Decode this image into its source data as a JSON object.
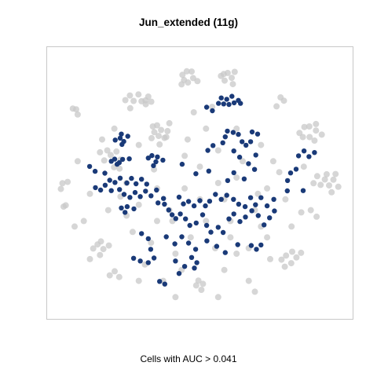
{
  "chart_data": {
    "type": "scatter",
    "title": "Jun_extended (11g)",
    "xlabel": "Cells with AUC > 0.041",
    "ylabel": "",
    "xlim": [
      0,
      100
    ],
    "ylim": [
      0,
      100
    ],
    "grid": false,
    "legend": "none",
    "colors": {
      "background_cells": "#c8c8c8",
      "highlighted_cells": "#1a3a78",
      "frame": "#c8c8c8"
    },
    "series": [
      {
        "role": "background-cells",
        "points": [
          [
            45.7,
            91.1
          ],
          [
            47.3,
            91.0
          ],
          [
            44.3,
            89.8
          ],
          [
            47.8,
            88.6
          ],
          [
            44.0,
            86.3
          ],
          [
            46.1,
            87.0
          ],
          [
            44.8,
            87.9
          ],
          [
            49.2,
            87.5
          ],
          [
            59.1,
            90.5
          ],
          [
            56.9,
            89.4
          ],
          [
            58.1,
            87.7
          ],
          [
            60.4,
            88.7
          ],
          [
            61.4,
            90.9
          ],
          [
            57.8,
            90.1
          ],
          [
            60.8,
            86.4
          ],
          [
            27.1,
            82.2
          ],
          [
            28.3,
            80.2
          ],
          [
            30.9,
            80.1
          ],
          [
            29.9,
            82.6
          ],
          [
            25.6,
            80.5
          ],
          [
            27.2,
            77.5
          ],
          [
            32.2,
            80.4
          ],
          [
            33.1,
            81.8
          ],
          [
            34.1,
            79.9
          ],
          [
            32.3,
            79.0
          ],
          [
            76.4,
            81.5
          ],
          [
            77.5,
            80.3
          ],
          [
            75.1,
            78.2
          ],
          [
            9.5,
            77.1
          ],
          [
            10.0,
            75.2
          ],
          [
            8.4,
            77.4
          ],
          [
            34.2,
            66.5
          ],
          [
            36.5,
            67.3
          ],
          [
            38.4,
            66.6
          ],
          [
            39.4,
            69.1
          ],
          [
            37.3,
            69.5
          ],
          [
            36.0,
            71.2
          ],
          [
            34.6,
            70.8
          ],
          [
            39.0,
            66.9
          ],
          [
            36.8,
            64.2
          ],
          [
            35.1,
            68.7
          ],
          [
            82.6,
            68.4
          ],
          [
            84.2,
            70.6
          ],
          [
            85.9,
            66.9
          ],
          [
            88.0,
            69.3
          ],
          [
            89.9,
            67.8
          ],
          [
            87.5,
            65.6
          ],
          [
            85.8,
            70.8
          ],
          [
            88.0,
            71.7
          ],
          [
            83.7,
            66.9
          ],
          [
            20.8,
            60.3
          ],
          [
            22.7,
            61.6
          ],
          [
            24.0,
            58.6
          ],
          [
            18.7,
            58.3
          ],
          [
            21.9,
            55.8
          ],
          [
            17.3,
            61.3
          ],
          [
            23.7,
            55.3
          ],
          [
            19.7,
            62.0
          ],
          [
            88.4,
            52.5
          ],
          [
            90.9,
            51.3
          ],
          [
            93.7,
            51.2
          ],
          [
            95.3,
            48.6
          ],
          [
            92.3,
            49.1
          ],
          [
            89.5,
            49.3
          ],
          [
            87.2,
            49.9
          ],
          [
            91.5,
            53.2
          ],
          [
            94.4,
            53.3
          ],
          [
            93.1,
            46.6
          ],
          [
            5.0,
            49.9
          ],
          [
            6.7,
            50.4
          ],
          [
            4.5,
            47.8
          ],
          [
            5.4,
            41.3
          ],
          [
            6.1,
            41.8
          ],
          [
            83.2,
            39.2
          ],
          [
            86.3,
            40.0
          ],
          [
            88.2,
            37.6
          ],
          [
            16.5,
            27.4
          ],
          [
            18.4,
            25.7
          ],
          [
            17.3,
            23.5
          ],
          [
            20.2,
            27.0
          ],
          [
            17.6,
            28.5
          ],
          [
            15.1,
            25.9
          ],
          [
            78.2,
            23.3
          ],
          [
            80.2,
            24.7
          ],
          [
            81.6,
            22.6
          ],
          [
            79.9,
            20.5
          ],
          [
            76.7,
            21.8
          ],
          [
            77.8,
            19.2
          ],
          [
            83.1,
            24.3
          ],
          [
            20.5,
            16.0
          ],
          [
            22.1,
            17.5
          ],
          [
            23.6,
            15.4
          ],
          [
            48.8,
            12.3
          ],
          [
            51.0,
            12.9
          ],
          [
            50.5,
            10.7
          ],
          [
            49.5,
            14.1
          ],
          [
            24.0,
            45.0
          ],
          [
            26.0,
            50.0
          ],
          [
            30.0,
            42.0
          ],
          [
            35.0,
            55.0
          ],
          [
            40.0,
            40.0
          ],
          [
            45.0,
            48.0
          ],
          [
            52.0,
            36.0
          ],
          [
            58.0,
            44.0
          ],
          [
            62.0,
            52.0
          ],
          [
            68.0,
            40.0
          ],
          [
            72.0,
            48.0
          ],
          [
            28.0,
            32.0
          ],
          [
            34.0,
            28.0
          ],
          [
            42.0,
            24.0
          ],
          [
            55.0,
            26.0
          ],
          [
            60.0,
            30.0
          ],
          [
            66.0,
            26.0
          ],
          [
            72.0,
            30.0
          ],
          [
            45.0,
            60.0
          ],
          [
            50.0,
            56.0
          ],
          [
            56.0,
            62.0
          ],
          [
            40.0,
            72.0
          ],
          [
            48.0,
            76.0
          ],
          [
            62.0,
            70.0
          ],
          [
            70.0,
            64.0
          ],
          [
            74.0,
            58.0
          ],
          [
            30.0,
            64.0
          ],
          [
            14.0,
            46.0
          ],
          [
            12.0,
            36.0
          ],
          [
            32.0,
            20.0
          ],
          [
            44.0,
            18.0
          ],
          [
            58.0,
            18.0
          ],
          [
            66.0,
            14.0
          ],
          [
            38.0,
            14.0
          ],
          [
            78.0,
            44.0
          ],
          [
            80.0,
            34.0
          ],
          [
            76.0,
            54.0
          ],
          [
            52.0,
            70.0
          ],
          [
            36.0,
            48.0
          ],
          [
            64.0,
            58.0
          ],
          [
            41.0,
            36.0
          ],
          [
            47.0,
            30.0
          ],
          [
            56.0,
            50.0
          ],
          [
            69.0,
            46.0
          ],
          [
            26.0,
            38.0
          ],
          [
            20.0,
            40.0
          ],
          [
            18.0,
            66.0
          ],
          [
            22.0,
            70.0
          ],
          [
            54.0,
            78.0
          ],
          [
            46.0,
            66.0
          ],
          [
            60.0,
            36.0
          ],
          [
            73.0,
            22.0
          ],
          [
            84.0,
            56.0
          ],
          [
            10.0,
            58.0
          ],
          [
            9.0,
            34.0
          ],
          [
            14.0,
            22.0
          ],
          [
            30.0,
            14.0
          ],
          [
            42.0,
            8.0
          ],
          [
            56.0,
            8.0
          ],
          [
            68.0,
            10.0
          ],
          [
            36.0,
            36.0
          ],
          [
            50.0,
            44.0
          ],
          [
            62.0,
            24.0
          ],
          [
            70.0,
            34.0
          ]
        ]
      },
      {
        "role": "cells-with-auc-above-threshold",
        "points": [
          [
            56.1,
            79.3
          ],
          [
            57.8,
            79.1
          ],
          [
            59.5,
            78.9
          ],
          [
            57.0,
            81.3
          ],
          [
            58.8,
            80.8
          ],
          [
            61.2,
            79.5
          ],
          [
            60.5,
            81.9
          ],
          [
            62.6,
            80.4
          ],
          [
            63.3,
            79.3
          ],
          [
            52.2,
            77.9
          ],
          [
            54.1,
            76.6
          ],
          [
            59.0,
            69.1
          ],
          [
            60.9,
            68.6
          ],
          [
            62.6,
            67.9
          ],
          [
            58.3,
            67.0
          ],
          [
            57.5,
            64.8
          ],
          [
            63.8,
            65.2
          ],
          [
            65.1,
            63.9
          ],
          [
            66.6,
            65.2
          ],
          [
            68.9,
            68.0
          ],
          [
            67.1,
            68.8
          ],
          [
            54.3,
            63.8
          ],
          [
            52.6,
            62.0
          ],
          [
            61.1,
            61.8
          ],
          [
            63.0,
            59.5
          ],
          [
            65.9,
            57.1
          ],
          [
            68.3,
            60.3
          ],
          [
            23.9,
            66.5
          ],
          [
            25.1,
            65.3
          ],
          [
            26.4,
            67.2
          ],
          [
            24.5,
            64.2
          ],
          [
            22.3,
            65.8
          ],
          [
            24.3,
            68.0
          ],
          [
            21.0,
            58.0
          ],
          [
            22.1,
            58.8
          ],
          [
            23.6,
            57.5
          ],
          [
            24.7,
            58.7
          ],
          [
            22.9,
            56.9
          ],
          [
            26.9,
            58.9
          ],
          [
            33.1,
            59.2
          ],
          [
            34.3,
            60.1
          ],
          [
            35.6,
            57.8
          ],
          [
            36.1,
            59.6
          ],
          [
            37.9,
            58.4
          ],
          [
            34.8,
            56.4
          ],
          [
            13.9,
            56.1
          ],
          [
            15.7,
            54.3
          ],
          [
            18.9,
            53.6
          ],
          [
            20.5,
            51.0
          ],
          [
            22.2,
            50.2
          ],
          [
            23.9,
            51.8
          ],
          [
            26.1,
            50.0
          ],
          [
            27.6,
            51.7
          ],
          [
            29.1,
            49.7
          ],
          [
            30.9,
            51.4
          ],
          [
            32.6,
            49.6
          ],
          [
            15.8,
            48.3
          ],
          [
            17.5,
            47.4
          ],
          [
            19.0,
            49.2
          ],
          [
            21.0,
            47.2
          ],
          [
            23.7,
            47.6
          ],
          [
            25.2,
            45.8
          ],
          [
            27.1,
            44.7
          ],
          [
            28.8,
            46.5
          ],
          [
            30.5,
            45.0
          ],
          [
            32.2,
            47.0
          ],
          [
            34.0,
            45.3
          ],
          [
            35.8,
            47.4
          ],
          [
            24.3,
            40.8
          ],
          [
            26.2,
            41.3
          ],
          [
            28.4,
            40.5
          ],
          [
            25.5,
            39.2
          ],
          [
            36.3,
            42.7
          ],
          [
            38.1,
            44.3
          ],
          [
            43.2,
            44.8
          ],
          [
            44.6,
            42.3
          ],
          [
            46.3,
            43.2
          ],
          [
            48.1,
            41.6
          ],
          [
            50.0,
            43.5
          ],
          [
            51.8,
            41.6
          ],
          [
            53.2,
            43.3
          ],
          [
            55.1,
            45.8
          ],
          [
            57.0,
            44.0
          ],
          [
            58.8,
            45.5
          ],
          [
            61.0,
            44.0
          ],
          [
            62.7,
            42.2
          ],
          [
            64.8,
            41.3
          ],
          [
            66.6,
            44.6
          ],
          [
            68.2,
            42.0
          ],
          [
            70.0,
            44.6
          ],
          [
            72.0,
            41.6
          ],
          [
            74.2,
            44.0
          ],
          [
            38.4,
            42.2
          ],
          [
            39.8,
            40.1
          ],
          [
            40.9,
            38.3
          ],
          [
            42.1,
            36.9
          ],
          [
            43.6,
            38.6
          ],
          [
            45.3,
            36.8
          ],
          [
            46.7,
            34.4
          ],
          [
            48.8,
            35.3
          ],
          [
            50.9,
            38.3
          ],
          [
            52.2,
            34.4
          ],
          [
            53.6,
            31.9
          ],
          [
            56.0,
            33.7
          ],
          [
            57.6,
            31.8
          ],
          [
            59.5,
            36.8
          ],
          [
            61.1,
            38.6
          ],
          [
            63.1,
            35.8
          ],
          [
            64.9,
            37.5
          ],
          [
            67.0,
            39.8
          ],
          [
            69.1,
            38.0
          ],
          [
            71.0,
            34.6
          ],
          [
            72.8,
            37.2
          ],
          [
            74.4,
            39.7
          ],
          [
            59.1,
            50.9
          ],
          [
            61.1,
            53.8
          ],
          [
            64.5,
            51.5
          ],
          [
            67.9,
            55.0
          ],
          [
            44.2,
            56.9
          ],
          [
            48.7,
            53.4
          ],
          [
            52.9,
            54.4
          ],
          [
            39.0,
            30.2
          ],
          [
            41.8,
            27.6
          ],
          [
            44.1,
            30.2
          ],
          [
            46.3,
            27.9
          ],
          [
            48.6,
            25.6
          ],
          [
            52.3,
            28.7
          ],
          [
            55.5,
            26.7
          ],
          [
            58.3,
            24.4
          ],
          [
            62.4,
            27.3
          ],
          [
            33.1,
            29.5
          ],
          [
            30.9,
            31.4
          ],
          [
            28.3,
            22.3
          ],
          [
            30.5,
            21.3
          ],
          [
            33.1,
            20.7
          ],
          [
            35.0,
            22.4
          ],
          [
            33.9,
            25.6
          ],
          [
            42.0,
            21.3
          ],
          [
            45.0,
            19.3
          ],
          [
            48.2,
            18.7
          ],
          [
            49.0,
            20.7
          ],
          [
            47.3,
            22.6
          ],
          [
            43.2,
            16.7
          ],
          [
            36.8,
            13.8
          ],
          [
            38.5,
            12.8
          ],
          [
            82.3,
            60.0
          ],
          [
            84.1,
            61.8
          ],
          [
            85.7,
            59.7
          ],
          [
            87.5,
            61.2
          ],
          [
            79.7,
            53.7
          ],
          [
            81.5,
            55.1
          ],
          [
            78.7,
            50.9
          ],
          [
            83.8,
            47.2
          ],
          [
            78.6,
            47.1
          ],
          [
            66.8,
            27.0
          ],
          [
            68.5,
            25.6
          ],
          [
            70.0,
            27.2
          ]
        ]
      }
    ]
  }
}
